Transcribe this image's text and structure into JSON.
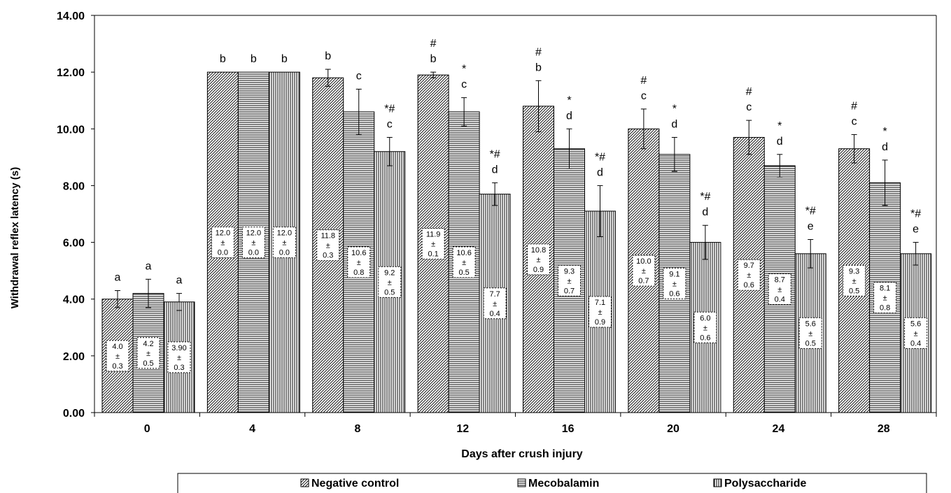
{
  "chart_data": {
    "type": "bar",
    "xlabel": "Days after crush injury",
    "ylabel": "Withdrawal reflex latency (s)",
    "ylim": [
      0,
      14
    ],
    "yticks": [
      "0.00",
      "2.00",
      "4.00",
      "6.00",
      "8.00",
      "10.00",
      "12.00",
      "14.00"
    ],
    "categories": [
      "0",
      "4",
      "8",
      "12",
      "16",
      "20",
      "24",
      "28"
    ],
    "legend_position": "bottom",
    "grid": false,
    "series": [
      {
        "name": "Negative control",
        "pattern": "diagonal",
        "values": [
          4.0,
          12.0,
          11.8,
          11.9,
          10.8,
          10.0,
          9.7,
          9.3
        ],
        "errors": [
          0.3,
          0.0,
          0.3,
          0.1,
          0.9,
          0.7,
          0.6,
          0.5
        ],
        "letters": [
          "a",
          "b",
          "b",
          "#\nb",
          "#\nb",
          "#\nc",
          "#\nc",
          "#\nc"
        ],
        "labels": [
          [
            "4.0",
            "±",
            "0.3"
          ],
          [
            "12.0",
            "±",
            "0.0"
          ],
          [
            "11.8",
            "±",
            "0.3"
          ],
          [
            "11.9",
            "±",
            "0.1"
          ],
          [
            "10.8",
            "±",
            "0.9"
          ],
          [
            "10.0",
            "±",
            "0.7"
          ],
          [
            "9.7",
            "±",
            "0.6"
          ],
          [
            "9.3",
            "±",
            "0.5"
          ]
        ]
      },
      {
        "name": "Mecobalamin",
        "pattern": "horizontal",
        "values": [
          4.2,
          12.0,
          10.6,
          10.6,
          9.3,
          9.1,
          8.7,
          8.1
        ],
        "errors": [
          0.5,
          0.0,
          0.8,
          0.5,
          0.7,
          0.6,
          0.4,
          0.8
        ],
        "letters": [
          "a",
          "b",
          "c",
          "*\nc",
          "*\nd",
          "*\nd",
          "*\nd",
          "*\nd"
        ],
        "labels": [
          [
            "4.2",
            "±",
            "0.5"
          ],
          [
            "12.0",
            "±",
            "0.0"
          ],
          [
            "10.6",
            "±",
            "0.8"
          ],
          [
            "10.6",
            "±",
            "0.5"
          ],
          [
            "9.3",
            "±",
            "0.7"
          ],
          [
            "9.1",
            "±",
            "0.6"
          ],
          [
            "8.7",
            "±",
            "0.4"
          ],
          [
            "8.1",
            "±",
            "0.8"
          ]
        ]
      },
      {
        "name": "Polysaccharide",
        "pattern": "vertical",
        "values": [
          3.9,
          12.0,
          9.2,
          7.7,
          7.1,
          6.0,
          5.6,
          5.6
        ],
        "errors": [
          0.3,
          0.0,
          0.5,
          0.4,
          0.9,
          0.6,
          0.5,
          0.4
        ],
        "letters": [
          "a",
          "b",
          "*#\nc",
          "*#\nd",
          "*#\nd",
          "*#\nd",
          "*#\ne",
          "*#\ne"
        ],
        "labels": [
          [
            "3.90",
            "±",
            "0.3"
          ],
          [
            "12.0",
            "±",
            "0.0"
          ],
          [
            "9.2",
            "±",
            "0.5"
          ],
          [
            "7.7",
            "±",
            "0.4"
          ],
          [
            "7.1",
            "±",
            "0.9"
          ],
          [
            "6.0",
            "±",
            "0.6"
          ],
          [
            "5.6",
            "±",
            "0.5"
          ],
          [
            "5.6",
            "±",
            "0.4"
          ]
        ]
      }
    ]
  }
}
